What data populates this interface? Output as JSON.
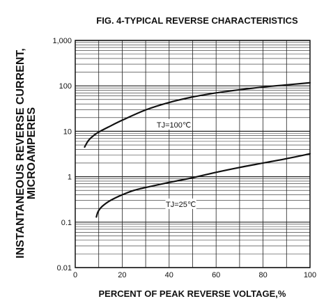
{
  "chart_data": {
    "type": "line",
    "title": "FIG. 4-TYPICAL REVERSE CHARACTERISTICS",
    "xlabel": "PERCENT OF PEAK REVERSE VOLTAGE,%",
    "ylabel_lines": [
      "INSTANTANEOUS REVERSE CURRENT,",
      "MICROAMPERES"
    ],
    "xlim": [
      0,
      100
    ],
    "ylim": [
      0.01,
      1000
    ],
    "yscale": "log",
    "grid": true,
    "x_ticks": [
      {
        "value": 0,
        "label": "0"
      },
      {
        "value": 20,
        "label": "20"
      },
      {
        "value": 40,
        "label": "40"
      },
      {
        "value": 60,
        "label": "60"
      },
      {
        "value": 80,
        "label": "80"
      },
      {
        "value": 100,
        "label": "100"
      }
    ],
    "y_ticks": [
      {
        "value": 0.01,
        "label": "0.01"
      },
      {
        "value": 0.1,
        "label": "0.1"
      },
      {
        "value": 1,
        "label": "1"
      },
      {
        "value": 10,
        "label": "10"
      },
      {
        "value": 100,
        "label": "100"
      },
      {
        "value": 1000,
        "label": "1,000"
      }
    ],
    "series": [
      {
        "name": "TJ=100℃",
        "label_at": {
          "x": 42,
          "y": 14
        },
        "x": [
          4,
          5,
          6,
          8,
          10,
          14,
          20,
          30,
          40,
          50,
          60,
          70,
          80,
          90,
          100
        ],
        "y": [
          4.5,
          5.6,
          6.6,
          8.2,
          9.6,
          12.3,
          17.5,
          29.5,
          43,
          57,
          70,
          82,
          94,
          105,
          117
        ]
      },
      {
        "name": "TJ=25℃",
        "label_at": {
          "x": 45,
          "y": 0.25
        },
        "x": [
          9,
          9.5,
          10,
          11,
          12,
          14,
          17,
          20,
          25,
          30,
          40,
          50,
          60,
          70,
          80,
          90,
          100
        ],
        "y": [
          0.13,
          0.16,
          0.18,
          0.21,
          0.235,
          0.28,
          0.34,
          0.4,
          0.5,
          0.58,
          0.75,
          0.95,
          1.25,
          1.6,
          2.0,
          2.5,
          3.2
        ]
      }
    ]
  }
}
